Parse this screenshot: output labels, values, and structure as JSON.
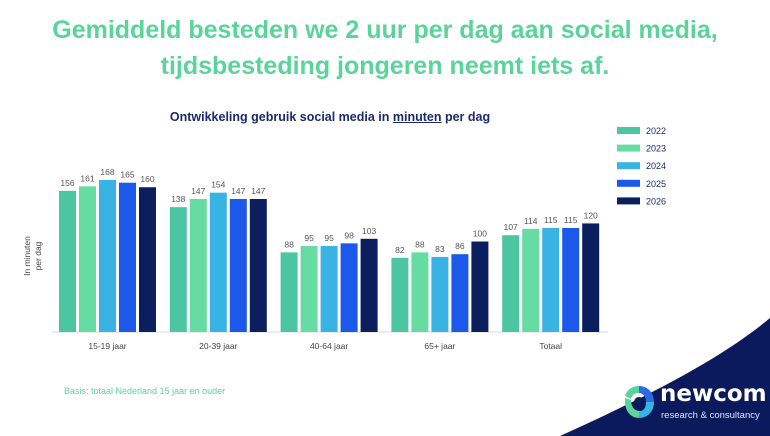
{
  "headline": {
    "line1": "Gemiddeld besteden we 2 uur per dag aan social media,",
    "line2": "tijdsbesteding jongeren neemt iets af."
  },
  "footer": {
    "basis": "Basis: totaal Nederland 15 jaar en ouder"
  },
  "logo": {
    "name": "newcom",
    "tagline": "research & consultancy"
  },
  "colors": {
    "headline": "#5ad49b",
    "title": "#1b2a6b",
    "brand_dark": "#0b1a5c"
  },
  "chart_data": {
    "type": "bar",
    "title_before": "Ontwikkeling gebruik social media in ",
    "title_underlined": "minuten",
    "title_after": " per dag",
    "ylabel_line1": "In minuten",
    "ylabel_line2": "per dag",
    "categories": [
      "15-19 jaar",
      "20-39 jaar",
      "40-64 jaar",
      "65+ jaar",
      "Totaal"
    ],
    "series": [
      {
        "name": "2022",
        "color": "#4cc6a1",
        "values": [
          156,
          138,
          88,
          82,
          107
        ]
      },
      {
        "name": "2023",
        "color": "#66dba2",
        "values": [
          161,
          147,
          95,
          88,
          114
        ]
      },
      {
        "name": "2024",
        "color": "#39b3e3",
        "values": [
          168,
          154,
          95,
          83,
          115
        ]
      },
      {
        "name": "2025",
        "color": "#1c58ea",
        "values": [
          165,
          147,
          98,
          86,
          115
        ]
      },
      {
        "name": "2026",
        "color": "#0b1f5e",
        "values": [
          160,
          147,
          103,
          100,
          120
        ]
      }
    ],
    "ylim": [
      0,
      168
    ],
    "grid": false,
    "data_labels": true,
    "legend_position": "right"
  }
}
